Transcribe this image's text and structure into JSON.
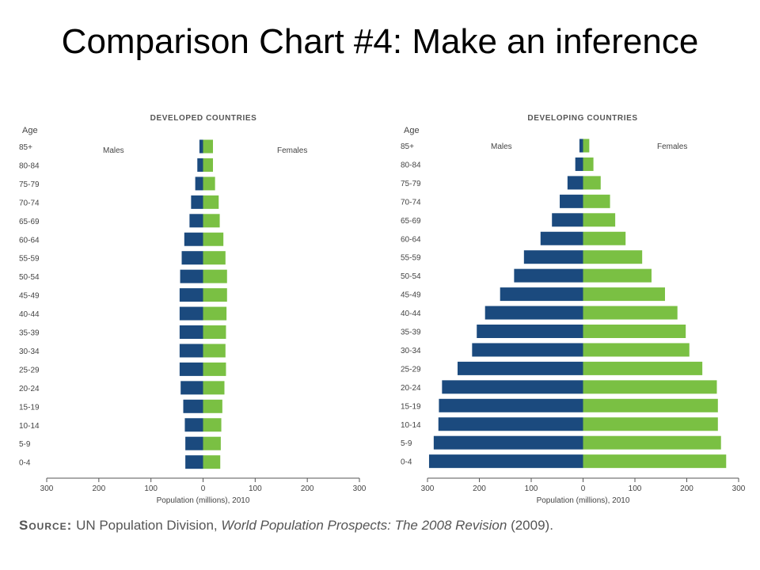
{
  "slide_title": "Comparison Chart #4: Make an inference",
  "source": {
    "label": "Source:",
    "text_before": " UN Population Division, ",
    "publication": "World Population Prospects: The 2008 Revision",
    "text_after": " (2009)."
  },
  "colors": {
    "males": "#1b4a7e",
    "females": "#7ac043",
    "axis": "#555555",
    "text": "#444444"
  },
  "chart_data": [
    {
      "type": "bar",
      "orientation": "horizontal-population-pyramid",
      "title": "DEVELOPED COUNTRIES",
      "age_axis_label": "Age",
      "xlabel": "Population (millions), 2010",
      "xlim": [
        -300,
        300
      ],
      "xticks": [
        "300",
        "200",
        "100",
        "0",
        "100",
        "200",
        "300"
      ],
      "xtick_values": [
        -300,
        -200,
        -100,
        0,
        100,
        200,
        300
      ],
      "categories": [
        "85+",
        "80-84",
        "75-79",
        "70-74",
        "65-69",
        "60-64",
        "55-59",
        "50-54",
        "45-49",
        "40-44",
        "35-39",
        "30-34",
        "25-29",
        "20-24",
        "15-19",
        "10-14",
        "5-9",
        "0-4"
      ],
      "series": [
        {
          "name": "Males",
          "values": [
            7,
            11,
            15,
            23,
            26,
            36,
            41,
            44,
            45,
            45,
            45,
            45,
            45,
            43,
            38,
            35,
            34,
            34
          ]
        },
        {
          "name": "Females",
          "values": [
            19,
            19,
            23,
            30,
            32,
            39,
            43,
            46,
            46,
            45,
            44,
            43,
            44,
            41,
            37,
            35,
            34,
            33
          ]
        }
      ]
    },
    {
      "type": "bar",
      "orientation": "horizontal-population-pyramid",
      "title": "DEVELOPING COUNTRIES",
      "age_axis_label": "Age",
      "xlabel": "Population (millions), 2010",
      "xlim": [
        -300,
        300
      ],
      "xticks": [
        "300",
        "200",
        "100",
        "0",
        "100",
        "200",
        "300"
      ],
      "xtick_values": [
        -300,
        -200,
        -100,
        0,
        100,
        200,
        300
      ],
      "categories": [
        "85+",
        "80-84",
        "75-79",
        "70-74",
        "65-69",
        "60-64",
        "55-59",
        "50-54",
        "45-49",
        "40-44",
        "35-39",
        "30-34",
        "25-29",
        "20-24",
        "15-19",
        "10-14",
        "5-9",
        "0-4"
      ],
      "series": [
        {
          "name": "Males",
          "values": [
            7,
            15,
            30,
            45,
            60,
            82,
            114,
            133,
            160,
            189,
            205,
            214,
            242,
            272,
            278,
            279,
            288,
            297
          ]
        },
        {
          "name": "Females",
          "values": [
            12,
            20,
            34,
            52,
            62,
            82,
            114,
            132,
            158,
            182,
            198,
            205,
            230,
            258,
            260,
            260,
            266,
            276
          ]
        }
      ]
    }
  ]
}
